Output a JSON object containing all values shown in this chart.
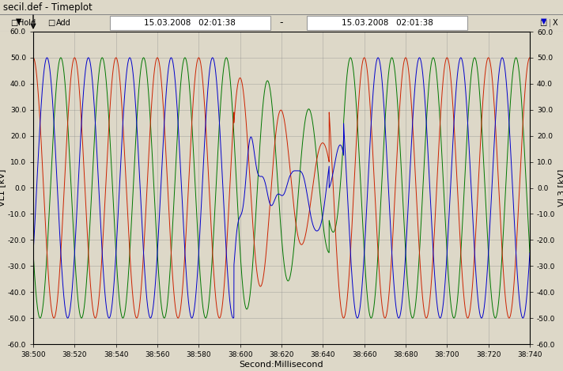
{
  "title": "secil.def - Timeplot",
  "header_text1": "15.03.2008   02:01:38",
  "header_text2": "15.03.2008   02:01:38",
  "xlabel": "Second:Millisecond",
  "ylabel_left": "VL1 [kV]",
  "ylabel_right": "VL3 [kV]",
  "ylim": [
    -60.0,
    60.0
  ],
  "yticks": [
    -60,
    -50,
    -40,
    -30,
    -20,
    -10,
    0,
    10,
    20,
    30,
    40,
    50,
    60
  ],
  "ytick_labels": [
    "-60.0",
    "-50.0",
    "-40.0",
    "-30.0",
    "-20.0",
    "-10.0",
    "0.0",
    "10.0",
    "20.0",
    "30.0",
    "40.0",
    "50.0",
    "60.0"
  ],
  "x_start": 38500,
  "x_end": 38740,
  "xtick_labels": [
    "38:500",
    "38:520",
    "38:540",
    "38:560",
    "38:580",
    "38:600",
    "38:620",
    "38:640",
    "38:660",
    "38:680",
    "38:700",
    "38:720",
    "38:740"
  ],
  "xtick_vals": [
    38500,
    38520,
    38540,
    38560,
    38580,
    38600,
    38620,
    38640,
    38660,
    38680,
    38700,
    38720,
    38740
  ],
  "amplitude": 50.0,
  "period_ms": 20.0,
  "color_red": "#cc2200",
  "color_blue": "#0000cc",
  "color_green": "#007700",
  "bg_color": "#ddd8c8",
  "plot_bg": "#ddd8c8",
  "title_bar_color": "#7788bb",
  "grid_color": "#888888",
  "phase_red_deg": 90,
  "phase_blue_deg": 330,
  "phase_green_deg": 210,
  "distort_start": 38597,
  "distort_end": 38643,
  "post_distort_end": 38650
}
